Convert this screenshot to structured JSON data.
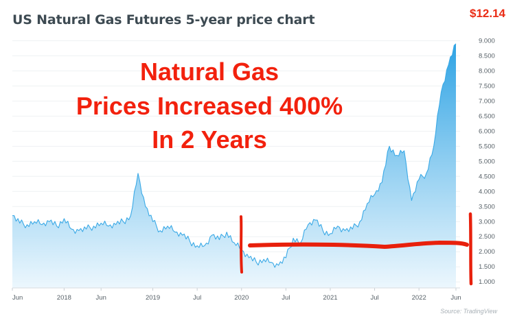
{
  "header": {
    "title": "US Natural Gas Futures 5-year price chart",
    "price": "$12.14"
  },
  "annotation": {
    "lines": [
      "Natural Gas",
      "Prices Increased 400%",
      "In 2 Years"
    ],
    "color": "#f2210d"
  },
  "source": "Source: TradingView",
  "colors": {
    "line": "#3aa9e6",
    "fill_top": "#2ea3e4",
    "fill_bottom": "#eaf6fd",
    "axis_text": "#555f66",
    "marker": "#e8200c"
  },
  "chart_data": {
    "type": "area",
    "title": "US Natural Gas Futures 5-year price chart",
    "xlabel": "",
    "ylabel": "",
    "ylim": [
      0.8,
      9.1
    ],
    "y_ticks": [
      "9.000",
      "8.500",
      "8.000",
      "7.500",
      "7.000",
      "6.500",
      "6.000",
      "5.500",
      "5.000",
      "4.500",
      "4.000",
      "3.500",
      "3.000",
      "2.500",
      "2.000",
      "1.500",
      "1.000"
    ],
    "x_ticks": [
      "Jun",
      "2018",
      "Jun",
      "2019",
      "Jul",
      "2020",
      "Jul",
      "2021",
      "Jul",
      "2022",
      "Jun"
    ],
    "x": [
      "2017-06",
      "2017-07",
      "2017-08",
      "2017-09",
      "2017-10",
      "2017-11",
      "2017-12",
      "2018-01",
      "2018-02",
      "2018-03",
      "2018-04",
      "2018-05",
      "2018-06",
      "2018-07",
      "2018-08",
      "2018-09",
      "2018-10",
      "2018-11",
      "2018-12",
      "2019-01",
      "2019-02",
      "2019-03",
      "2019-04",
      "2019-05",
      "2019-06",
      "2019-07",
      "2019-08",
      "2019-09",
      "2019-10",
      "2019-11",
      "2019-12",
      "2020-01",
      "2020-02",
      "2020-03",
      "2020-04",
      "2020-05",
      "2020-06",
      "2020-07",
      "2020-08",
      "2020-09",
      "2020-10",
      "2020-11",
      "2020-12",
      "2021-01",
      "2021-02",
      "2021-03",
      "2021-04",
      "2021-05",
      "2021-06",
      "2021-07",
      "2021-08",
      "2021-09",
      "2021-10",
      "2021-11",
      "2021-12",
      "2022-01",
      "2022-02",
      "2022-03",
      "2022-04",
      "2022-05",
      "2022-06"
    ],
    "series": [
      {
        "values": [
          3.2,
          2.95,
          2.9,
          3.0,
          2.9,
          3.0,
          2.85,
          3.1,
          2.75,
          2.7,
          2.75,
          2.85,
          2.95,
          2.85,
          2.9,
          3.0,
          3.2,
          4.6,
          3.5,
          3.0,
          2.7,
          2.85,
          2.65,
          2.55,
          2.35,
          2.2,
          2.2,
          2.55,
          2.4,
          2.65,
          2.3,
          2.05,
          1.8,
          1.65,
          1.75,
          1.65,
          1.55,
          1.8,
          2.45,
          2.3,
          2.9,
          3.05,
          2.7,
          2.6,
          2.85,
          2.7,
          2.75,
          3.0,
          3.6,
          3.9,
          4.3,
          5.5,
          5.2,
          5.35,
          3.7,
          4.4,
          4.6,
          5.5,
          7.3,
          8.2,
          8.9
        ]
      }
    ],
    "grid": true,
    "legend": "none"
  }
}
